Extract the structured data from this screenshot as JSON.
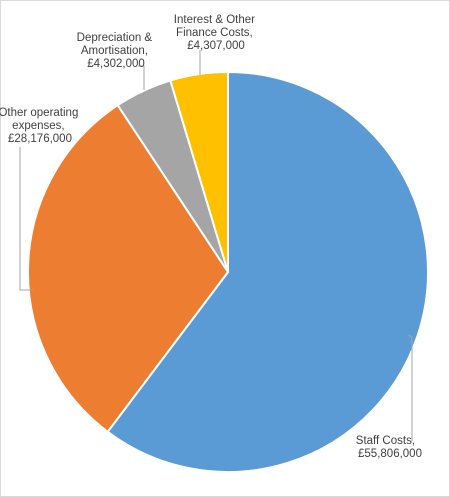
{
  "chart_data": {
    "type": "pie",
    "categories": [
      "Staff Costs",
      "Other operating expenses",
      "Depreciation & Amortisation",
      "Interest & Other Finance Costs"
    ],
    "values": [
      55806000,
      28176000,
      4302000,
      4307000
    ],
    "value_labels": [
      "£55,806,000",
      "£28,176,000",
      "£4,302,000",
      "£4,307,000"
    ],
    "colors": [
      "#5b9bd5",
      "#ed7d31",
      "#a5a5a5",
      "#ffc000"
    ],
    "start_angle_deg": 0,
    "direction": "clockwise",
    "legend": "none",
    "title": ""
  },
  "labels": {
    "staff": {
      "line1": "Staff Costs,",
      "line2": "£55,806,000"
    },
    "other": {
      "line1": "Other operating",
      "line2": "expenses,",
      "line3": "£28,176,000"
    },
    "depreciation": {
      "line1": "Depreciation &",
      "line2": "Amortisation,",
      "line3": "£4,302,000"
    },
    "interest": {
      "line1": "Interest & Other",
      "line2": "Finance Costs,",
      "line3": "£4,307,000"
    }
  }
}
